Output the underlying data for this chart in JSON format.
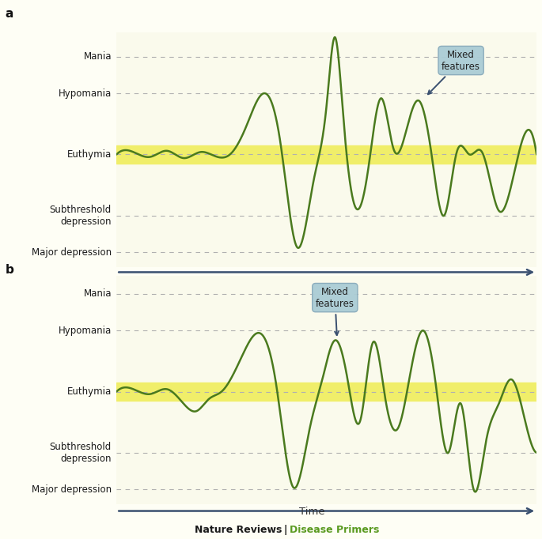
{
  "background_color": "#fefef5",
  "panel_bg_color": "#fafaec",
  "euthymia_band_color": "#f0ee6a",
  "line_color": "#4a7a1e",
  "line_width": 1.8,
  "arrow_color": "#3a5070",
  "box_facecolor": "#aaccd5",
  "box_edgecolor": "#88aabb",
  "dashed_color": "#b0b0b0",
  "y_levels": {
    "Mania": 4,
    "Hypomania": 2.5,
    "Euthymia": 0,
    "Subthreshold depression": -2.5,
    "Major depression": -4
  },
  "euthymia_band_half": 0.38,
  "time_label": "Time",
  "footer_left": "Nature Reviews",
  "footer_right": "Disease Primers",
  "footer_color_left": "#1a1a1a",
  "footer_color_right": "#5a9a20"
}
